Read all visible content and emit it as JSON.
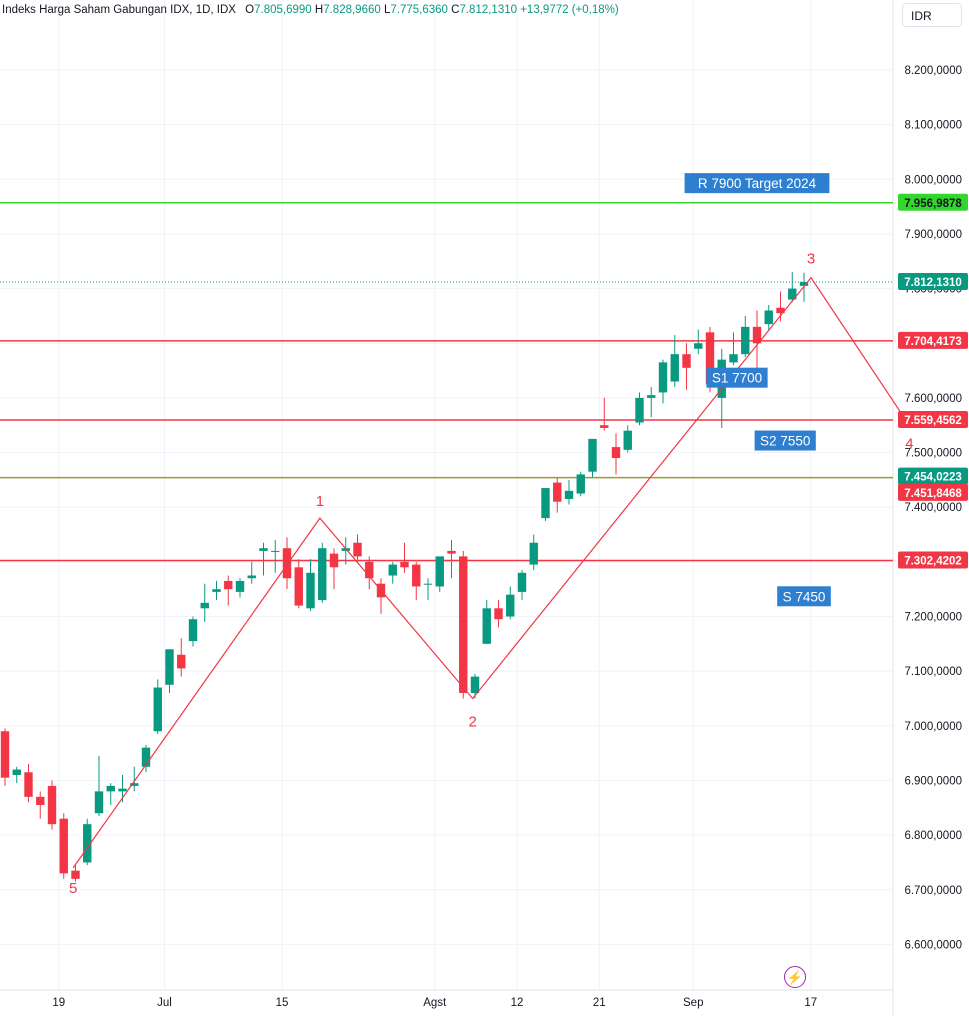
{
  "header": {
    "symbol": "Indeks Harga Saham Gabungan IDX, 1D, IDX",
    "open_label": "O",
    "open": "7.805,6990",
    "high_label": "H",
    "high": "7.828,9660",
    "low_label": "L",
    "low": "7.775,6360",
    "close_label": "C",
    "close": "7.812,1310",
    "change": "+13,9772 (+0,18%)",
    "currency": "IDR"
  },
  "colors": {
    "up": "#089981",
    "down": "#f23645",
    "line_red": "#f23645",
    "line_green": "#33d62b",
    "line_olive": "#9e9a2f",
    "wave": "#f23645",
    "note_bg": "#2f7fd0"
  },
  "chart_data": {
    "type": "candlestick",
    "y_axis": {
      "min": 6550,
      "max": 8270,
      "ticks": [
        8200,
        8100,
        8000,
        7900,
        7800,
        7700,
        7600,
        7500,
        7400,
        7300,
        7200,
        7100,
        7000,
        6900,
        6800,
        6700,
        6600
      ],
      "tick_labels": [
        "8.200,0000",
        "8.100,0000",
        "8.000,0000",
        "7.900,0000",
        "7.800,0000",
        "7.700,0000",
        "7.600,0000",
        "7.500,0000",
        "7.400,0000",
        "7.300,0000",
        "7.200,0000",
        "7.100,0000",
        "7.000,0000",
        "6.900,0000",
        "6.800,0000",
        "6.700,0000",
        "6.600,0000"
      ]
    },
    "x_axis": {
      "labels": [
        {
          "text": "19",
          "bar": 5
        },
        {
          "text": "Jul",
          "bar": 14
        },
        {
          "text": "15",
          "bar": 24
        },
        {
          "text": "Agst",
          "bar": 37
        },
        {
          "text": "12",
          "bar": 44
        },
        {
          "text": "21",
          "bar": 51
        },
        {
          "text": "Sep",
          "bar": 59
        },
        {
          "text": "17",
          "bar": 69
        }
      ]
    },
    "candles": [
      [
        6990,
        6995,
        6890,
        6905
      ],
      [
        6910,
        6925,
        6895,
        6920
      ],
      [
        6915,
        6930,
        6860,
        6870
      ],
      [
        6870,
        6880,
        6830,
        6855
      ],
      [
        6890,
        6900,
        6810,
        6820
      ],
      [
        6830,
        6840,
        6720,
        6730
      ],
      [
        6735,
        6745,
        6715,
        6720
      ],
      [
        6750,
        6830,
        6745,
        6820
      ],
      [
        6840,
        6945,
        6835,
        6880
      ],
      [
        6880,
        6895,
        6855,
        6890
      ],
      [
        6880,
        6910,
        6860,
        6885
      ],
      [
        6890,
        6925,
        6880,
        6895
      ],
      [
        6925,
        6965,
        6915,
        6960
      ],
      [
        6990,
        7085,
        6985,
        7070
      ],
      [
        7075,
        7140,
        7060,
        7140
      ],
      [
        7130,
        7160,
        7090,
        7105
      ],
      [
        7155,
        7200,
        7145,
        7195
      ],
      [
        7215,
        7260,
        7190,
        7225
      ],
      [
        7245,
        7265,
        7230,
        7250
      ],
      [
        7265,
        7275,
        7220,
        7250
      ],
      [
        7245,
        7270,
        7235,
        7265
      ],
      [
        7270,
        7300,
        7260,
        7275
      ],
      [
        7320,
        7335,
        7275,
        7325
      ],
      [
        7320,
        7340,
        7280,
        7320
      ],
      [
        7325,
        7345,
        7250,
        7270
      ],
      [
        7290,
        7305,
        7215,
        7220
      ],
      [
        7215,
        7305,
        7210,
        7280
      ],
      [
        7230,
        7335,
        7225,
        7325
      ],
      [
        7315,
        7325,
        7250,
        7290
      ],
      [
        7320,
        7345,
        7295,
        7325
      ],
      [
        7335,
        7350,
        7300,
        7310
      ],
      [
        7300,
        7310,
        7250,
        7270
      ],
      [
        7260,
        7270,
        7205,
        7235
      ],
      [
        7275,
        7300,
        7260,
        7295
      ],
      [
        7300,
        7335,
        7280,
        7290
      ],
      [
        7295,
        7300,
        7230,
        7255
      ],
      [
        7260,
        7270,
        7230,
        7260
      ],
      [
        7255,
        7300,
        7245,
        7310
      ],
      [
        7320,
        7340,
        7270,
        7315
      ],
      [
        7310,
        7320,
        7050,
        7060
      ],
      [
        7060,
        7095,
        7050,
        7090
      ],
      [
        7150,
        7230,
        7150,
        7215
      ],
      [
        7215,
        7230,
        7180,
        7195
      ],
      [
        7200,
        7255,
        7195,
        7240
      ],
      [
        7245,
        7285,
        7230,
        7280
      ],
      [
        7295,
        7350,
        7285,
        7335
      ],
      [
        7380,
        7435,
        7375,
        7435
      ],
      [
        7445,
        7455,
        7390,
        7410
      ],
      [
        7415,
        7450,
        7405,
        7430
      ],
      [
        7425,
        7465,
        7420,
        7460
      ],
      [
        7465,
        7525,
        7455,
        7525
      ],
      [
        7550,
        7600,
        7540,
        7545
      ],
      [
        7510,
        7535,
        7460,
        7490
      ],
      [
        7505,
        7550,
        7500,
        7540
      ],
      [
        7555,
        7610,
        7550,
        7600
      ],
      [
        7600,
        7620,
        7565,
        7605
      ],
      [
        7610,
        7670,
        7590,
        7665
      ],
      [
        7630,
        7715,
        7620,
        7680
      ],
      [
        7680,
        7700,
        7615,
        7655
      ],
      [
        7690,
        7725,
        7680,
        7700
      ],
      [
        7720,
        7730,
        7610,
        7625
      ],
      [
        7600,
        7690,
        7545,
        7670
      ],
      [
        7665,
        7720,
        7660,
        7680
      ],
      [
        7680,
        7750,
        7675,
        7730
      ],
      [
        7730,
        7760,
        7650,
        7700
      ],
      [
        7735,
        7770,
        7725,
        7760
      ],
      [
        7765,
        7795,
        7740,
        7755
      ],
      [
        7780,
        7830,
        7775,
        7800
      ],
      [
        7805,
        7829,
        7776,
        7812
      ]
    ],
    "horizontal_lines": [
      {
        "value": 7956.9878,
        "label": "7.956,9878",
        "color": "#33d62b"
      },
      {
        "value": 7812.131,
        "label": "7.812,1310",
        "color": "#089981",
        "dotted": true
      },
      {
        "value": 7704.4173,
        "label": "7.704,4173",
        "color": "#f23645"
      },
      {
        "value": 7559.4562,
        "label": "7.559,4562",
        "color": "#f23645"
      },
      {
        "value": 7454.0223,
        "label": "7.454,0223",
        "color": "#9e9a2f",
        "badge": "#089981"
      },
      {
        "value": 7451.8468,
        "label": "7.451,8468",
        "color": "#f23645",
        "hidden_line": true
      },
      {
        "value": 7302.4202,
        "label": "7.302,4202",
        "color": "#f23645"
      }
    ],
    "wave": [
      {
        "bar": 5.8,
        "price": 6740,
        "label": "5"
      },
      {
        "bar": 26.8,
        "price": 7380,
        "label": "1"
      },
      {
        "bar": 39.8,
        "price": 7050,
        "label": "2"
      },
      {
        "bar": 68.6,
        "price": 7820,
        "label": "3"
      },
      {
        "bar": 76.8,
        "price": 7555,
        "label": "4"
      }
    ],
    "notes": [
      {
        "text": "R 7900 Target 2024",
        "bar": 64,
        "price": 7993
      },
      {
        "text": "S1 7700",
        "bar": 62.3,
        "price": 7637
      },
      {
        "text": "S2 7550",
        "bar": 66.4,
        "price": 7522
      },
      {
        "text": "S 7450",
        "bar": 68,
        "price": 7237
      }
    ]
  }
}
